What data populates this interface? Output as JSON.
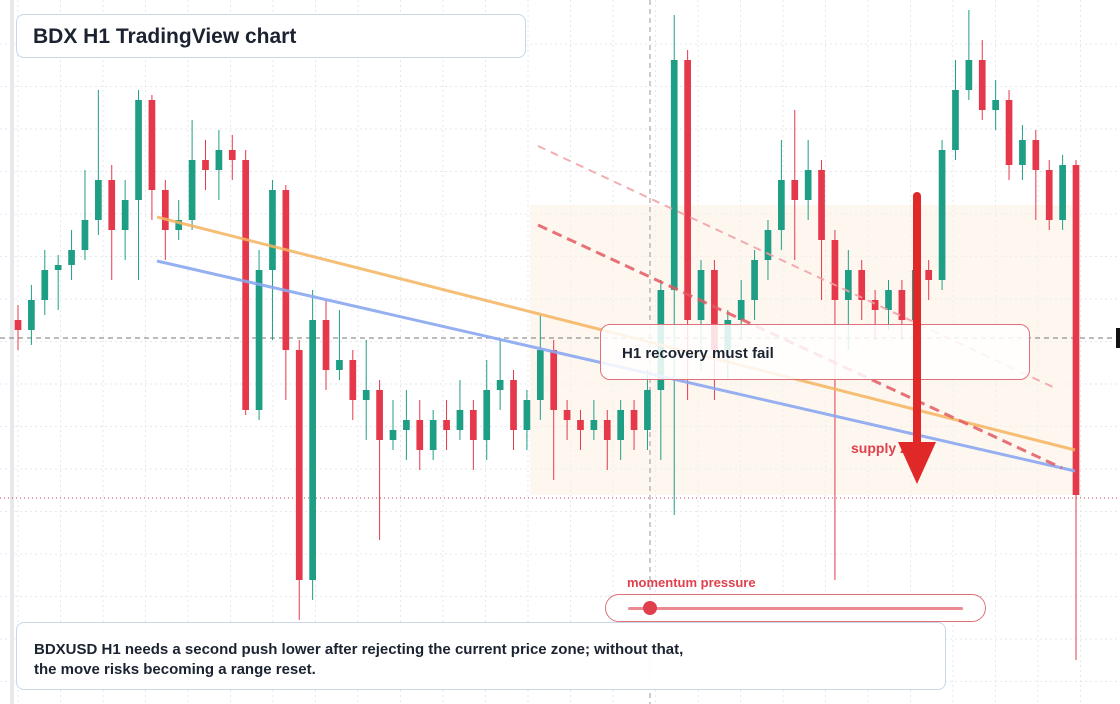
{
  "header": {
    "title": "BDX H1 TradingView chart"
  },
  "chart_data": {
    "type": "candlestick",
    "ylim": [
      0,
      700
    ],
    "up_color": "#1f9e86",
    "down_color": "#e5384a",
    "ohlc": [
      [
        380,
        395,
        350,
        370
      ],
      [
        370,
        415,
        355,
        400
      ],
      [
        400,
        450,
        385,
        430
      ],
      [
        430,
        445,
        390,
        435
      ],
      [
        435,
        470,
        420,
        450
      ],
      [
        450,
        530,
        440,
        480
      ],
      [
        480,
        610,
        465,
        520
      ],
      [
        520,
        535,
        420,
        470
      ],
      [
        470,
        520,
        440,
        500
      ],
      [
        500,
        610,
        420,
        600
      ],
      [
        600,
        605,
        480,
        510
      ],
      [
        510,
        520,
        440,
        470
      ],
      [
        470,
        500,
        460,
        480
      ],
      [
        480,
        580,
        470,
        540
      ],
      [
        540,
        560,
        510,
        530
      ],
      [
        530,
        570,
        500,
        550
      ],
      [
        550,
        565,
        520,
        540
      ],
      [
        540,
        550,
        285,
        290
      ],
      [
        290,
        450,
        280,
        430
      ],
      [
        430,
        520,
        360,
        510
      ],
      [
        510,
        515,
        300,
        350
      ],
      [
        350,
        360,
        80,
        120
      ],
      [
        120,
        410,
        100,
        380
      ],
      [
        380,
        400,
        310,
        330
      ],
      [
        330,
        390,
        320,
        340
      ],
      [
        340,
        350,
        280,
        300
      ],
      [
        300,
        360,
        260,
        310
      ],
      [
        310,
        320,
        160,
        260
      ],
      [
        260,
        300,
        250,
        270
      ],
      [
        270,
        310,
        240,
        280
      ],
      [
        280,
        300,
        230,
        250
      ],
      [
        250,
        290,
        240,
        280
      ],
      [
        280,
        300,
        250,
        270
      ],
      [
        270,
        320,
        260,
        290
      ],
      [
        290,
        300,
        230,
        260
      ],
      [
        260,
        340,
        240,
        310
      ],
      [
        310,
        360,
        290,
        320
      ],
      [
        320,
        330,
        250,
        270
      ],
      [
        270,
        310,
        250,
        300
      ],
      [
        300,
        385,
        280,
        350
      ],
      [
        350,
        360,
        220,
        290
      ],
      [
        290,
        300,
        260,
        280
      ],
      [
        280,
        290,
        250,
        270
      ],
      [
        270,
        300,
        260,
        280
      ],
      [
        280,
        290,
        230,
        260
      ],
      [
        260,
        300,
        240,
        290
      ],
      [
        290,
        300,
        250,
        270
      ],
      [
        270,
        330,
        250,
        310
      ],
      [
        310,
        420,
        240,
        410
      ],
      [
        410,
        685,
        185,
        640
      ],
      [
        640,
        650,
        300,
        380
      ],
      [
        380,
        440,
        330,
        430
      ],
      [
        430,
        440,
        300,
        350
      ],
      [
        350,
        390,
        320,
        380
      ],
      [
        380,
        420,
        360,
        400
      ],
      [
        400,
        450,
        380,
        440
      ],
      [
        440,
        480,
        420,
        470
      ],
      [
        470,
        560,
        450,
        520
      ],
      [
        520,
        590,
        440,
        500
      ],
      [
        500,
        560,
        480,
        530
      ],
      [
        530,
        540,
        400,
        460
      ],
      [
        460,
        470,
        120,
        400
      ],
      [
        400,
        450,
        350,
        430
      ],
      [
        430,
        440,
        380,
        400
      ],
      [
        400,
        410,
        360,
        390
      ],
      [
        390,
        420,
        370,
        410
      ],
      [
        410,
        420,
        360,
        380
      ],
      [
        380,
        440,
        370,
        430
      ],
      [
        430,
        440,
        400,
        420
      ],
      [
        420,
        560,
        410,
        550
      ],
      [
        550,
        640,
        540,
        610
      ],
      [
        610,
        690,
        600,
        640
      ],
      [
        640,
        660,
        580,
        590
      ],
      [
        590,
        620,
        570,
        600
      ],
      [
        600,
        610,
        520,
        535
      ],
      [
        535,
        575,
        520,
        560
      ],
      [
        560,
        570,
        480,
        530
      ],
      [
        530,
        540,
        470,
        480
      ],
      [
        480,
        545,
        470,
        535
      ],
      [
        535,
        540,
        40,
        205
      ]
    ]
  },
  "annotations": {
    "callout": "H1 recovery must fail",
    "zone_label": "supply zone",
    "slider_label": "momentum pressure"
  },
  "caption": [
    "BDXUSD H1 needs a second push lower after rejecting the current price zone; without that,",
    "the move risks becoming a range reset."
  ]
}
